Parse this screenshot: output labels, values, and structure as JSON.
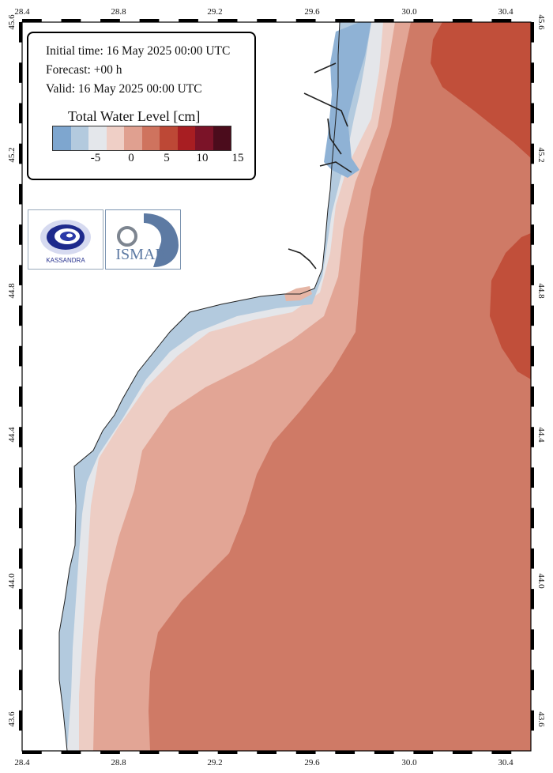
{
  "info": {
    "initial_time": "Initial time: 16 May 2025 00:00 UTC",
    "forecast": "Forecast: +00 h",
    "valid": "Valid: 16 May 2025 00:00 UTC"
  },
  "legend": {
    "title": "Total Water Level [cm]",
    "colors": [
      "#7ea6cf",
      "#b3cade",
      "#e4e7eb",
      "#efcfc6",
      "#e0a090",
      "#cf735e",
      "#bd4836",
      "#a81e22",
      "#7b1328",
      "#4b0c1c"
    ],
    "labels": [
      "-5",
      "0",
      "5",
      "10",
      "15"
    ]
  },
  "axes": {
    "lon_ticks": [
      "28.4",
      "28.8",
      "29.2",
      "29.6",
      "30.0",
      "30.4"
    ],
    "lat_ticks": [
      "45.6",
      "45.2",
      "44.8",
      "44.4",
      "44.0",
      "43.6"
    ]
  },
  "logos": {
    "kassandra": {
      "text": "KASSANDRA",
      "icon": "kassandra-swirl-icon"
    },
    "ismar": {
      "text": "ISMAR",
      "icon": "cnr-wave-icon"
    }
  }
}
